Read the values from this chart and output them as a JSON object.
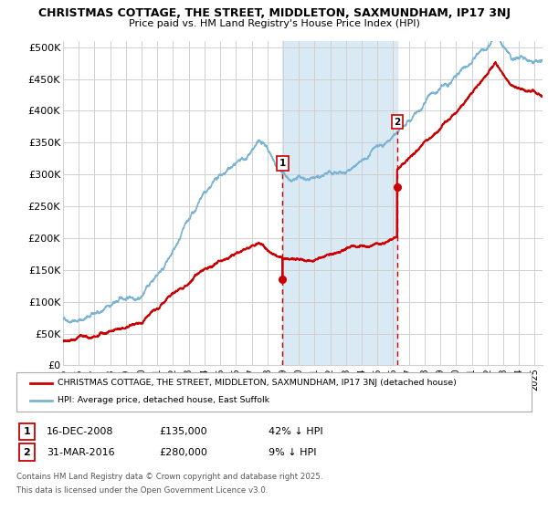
{
  "title_line1": "CHRISTMAS COTTAGE, THE STREET, MIDDLETON, SAXMUNDHAM, IP17 3NJ",
  "title_line2": "Price paid vs. HM Land Registry's House Price Index (HPI)",
  "yticks": [
    0,
    50000,
    100000,
    150000,
    200000,
    250000,
    300000,
    350000,
    400000,
    450000,
    500000
  ],
  "ytick_labels": [
    "£0",
    "£50K",
    "£100K",
    "£150K",
    "£200K",
    "£250K",
    "£300K",
    "£350K",
    "£400K",
    "£450K",
    "£500K"
  ],
  "xmin": 1995,
  "xmax": 2025.5,
  "ymin": 0,
  "ymax": 510000,
  "hpi_color": "#7ab3d4",
  "price_color": "#cc0000",
  "vline_color": "#cc0000",
  "shade_color": "#daeaf5",
  "marker1_year": 2008.96,
  "marker2_year": 2016.25,
  "marker1_price": 135000,
  "marker2_price": 280000,
  "legend_label1": "CHRISTMAS COTTAGE, THE STREET, MIDDLETON, SAXMUNDHAM, IP17 3NJ (detached house)",
  "legend_label2": "HPI: Average price, detached house, East Suffolk",
  "table_row1": [
    "1",
    "16-DEC-2008",
    "£135,000",
    "42% ↓ HPI"
  ],
  "table_row2": [
    "2",
    "31-MAR-2016",
    "£280,000",
    "9% ↓ HPI"
  ],
  "footnote1": "Contains HM Land Registry data © Crown copyright and database right 2025.",
  "footnote2": "This data is licensed under the Open Government Licence v3.0.",
  "background_color": "#ffffff",
  "grid_color": "#d0d0d0"
}
